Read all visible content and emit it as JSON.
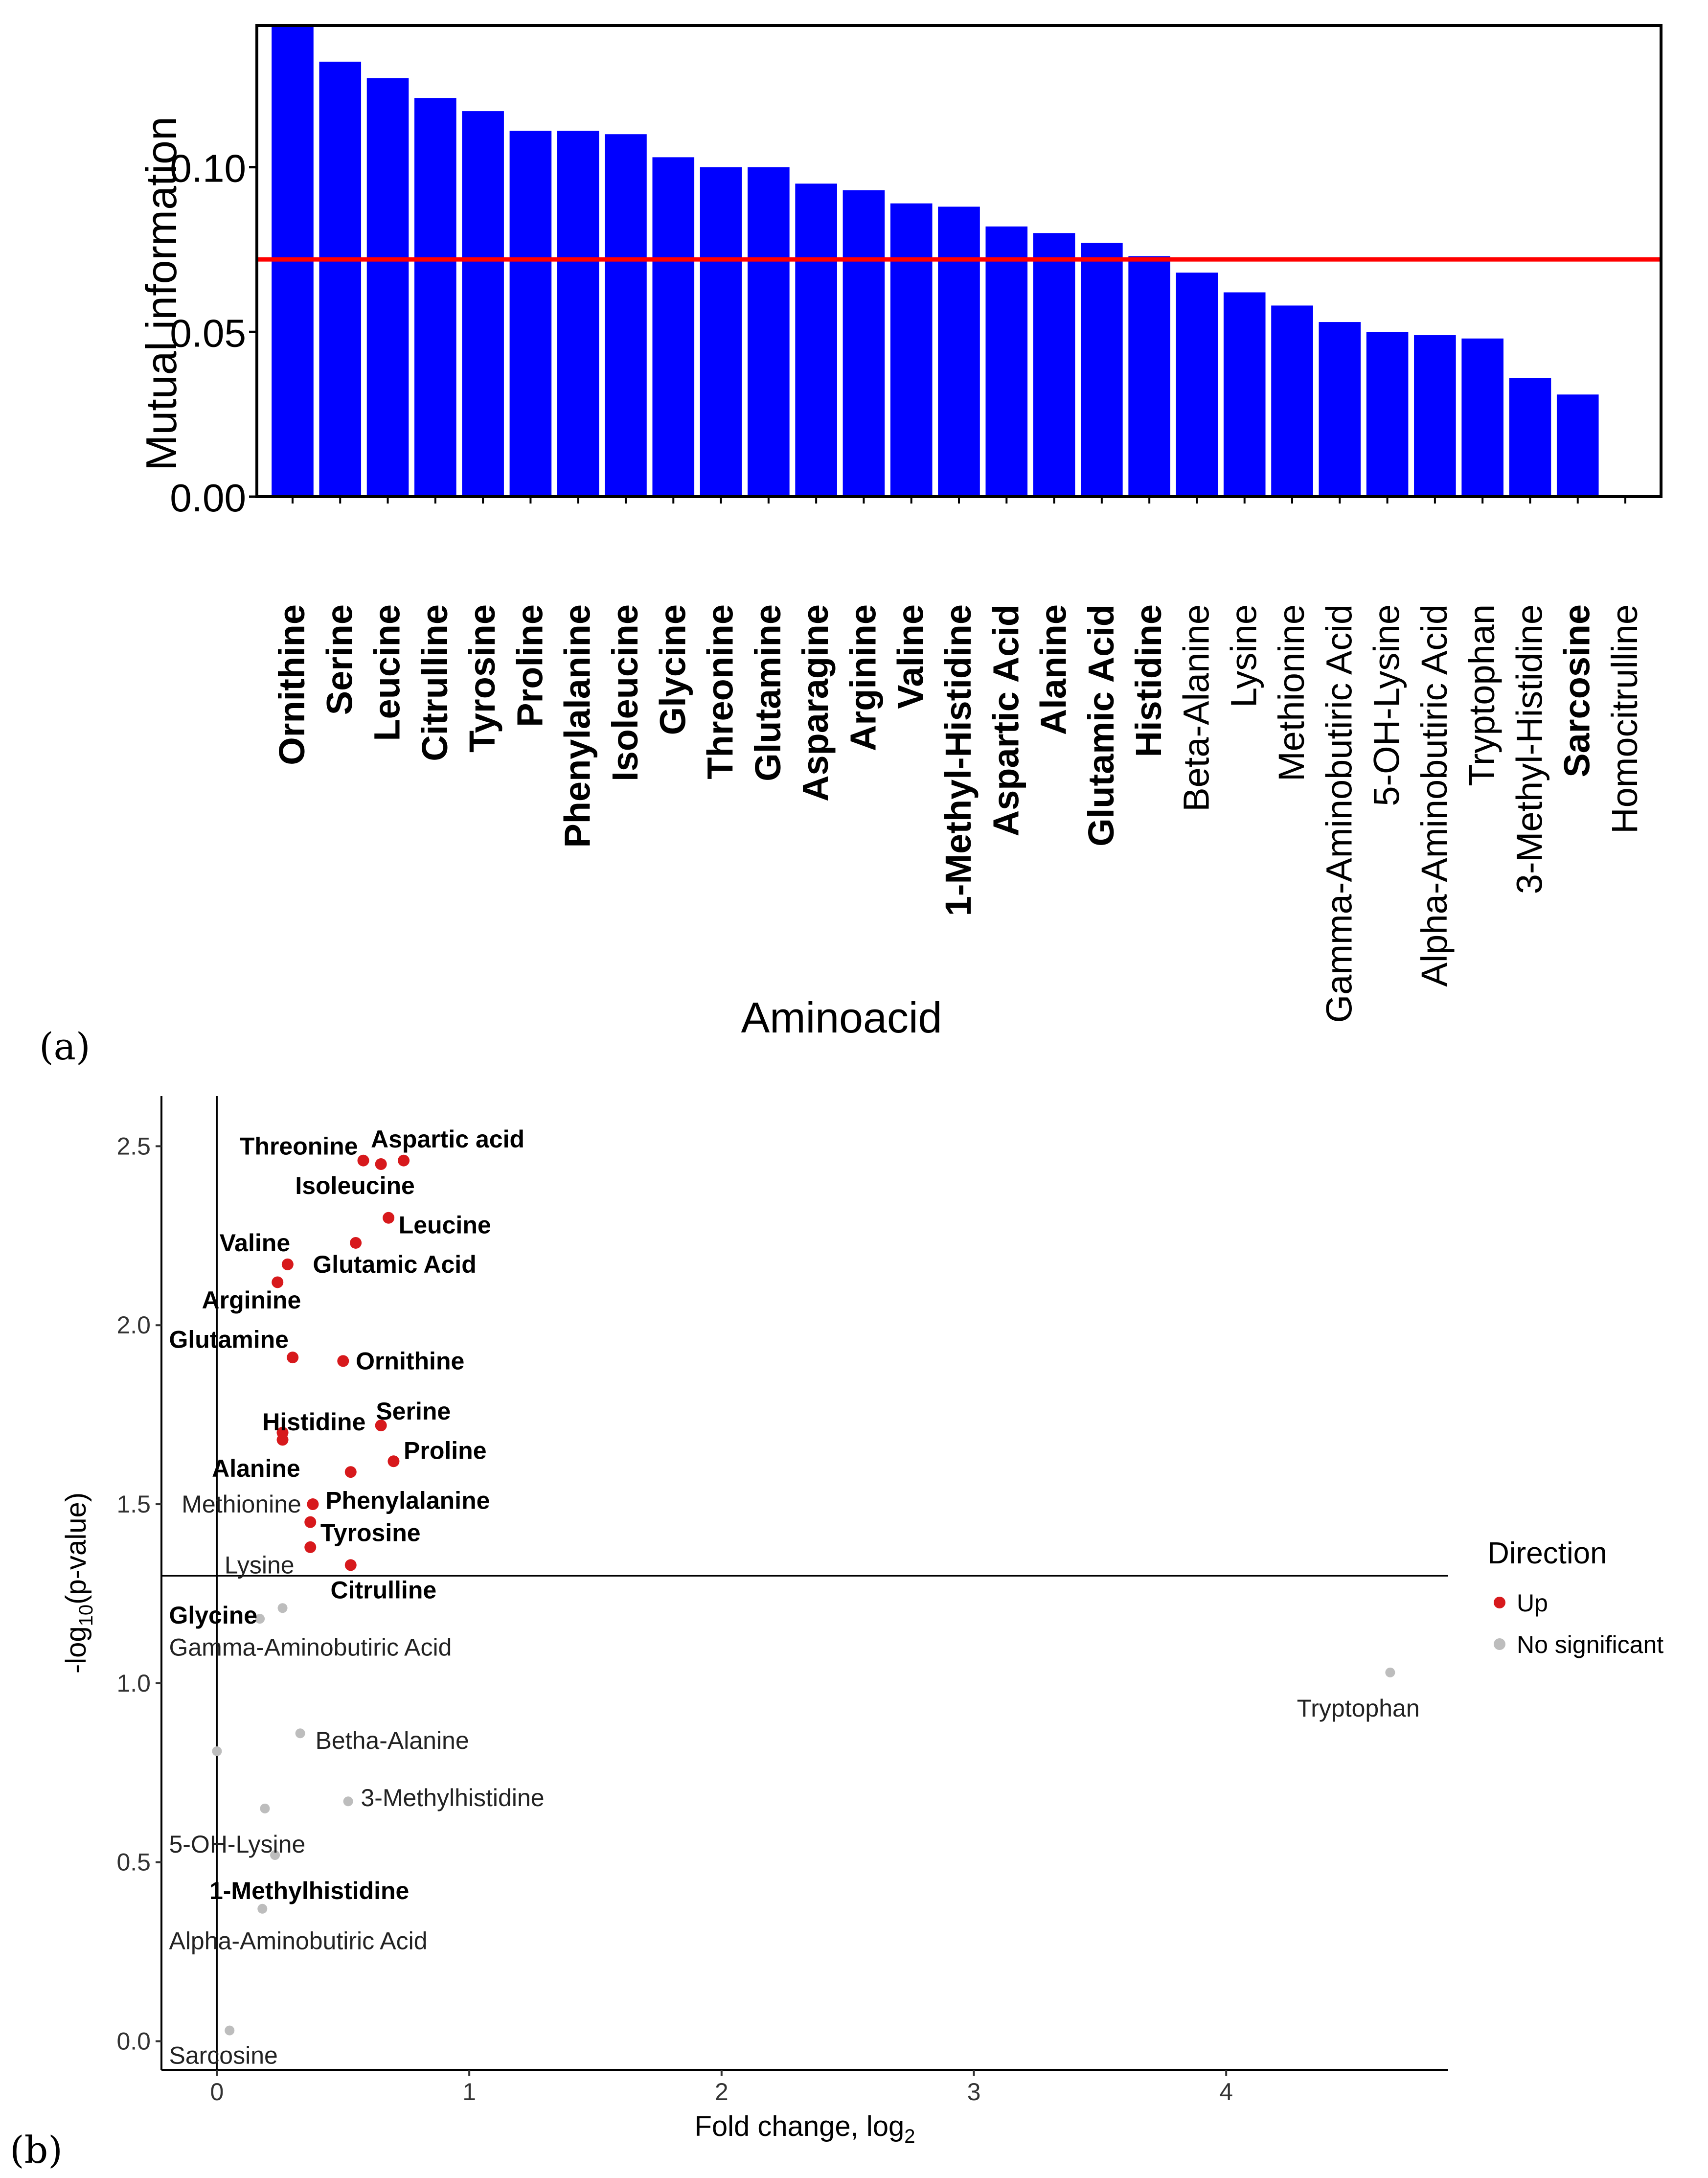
{
  "chart_data": [
    {
      "panel_label": "(a)",
      "type": "bar",
      "xlabel": "Aminoacid",
      "ylabel": "Mutual information",
      "ylim": [
        0,
        0.143
      ],
      "yticks": [
        0.0,
        0.05,
        0.1
      ],
      "ytick_labels": [
        "0.00",
        "0.05",
        "0.10"
      ],
      "bar_color": "#0000ff",
      "threshold": 0.072,
      "threshold_color": "#ff0000",
      "categories": [
        "Ornithine",
        "Serine",
        "Leucine",
        "Citrulline",
        "Tyrosine",
        "Proline",
        "Phenylalanine",
        "Isoleucine",
        "Glycine",
        "Threonine",
        "Glutamine",
        "Asparagine",
        "Arginine",
        "Valine",
        "1-Methyl-Histidine",
        "Aspartic Acid",
        "Alanine",
        "Glutamic Acid",
        "Histidine",
        "Beta-Alanine",
        "Lysine",
        "Methionine",
        "Gamma-Aminobutiric Acid",
        "5-OH-Lysine",
        "Alpha-Aminobutiric Acid",
        "Tryptophan",
        "3-Methyl-Histidine",
        "Sarcosine",
        "Homocitrulline"
      ],
      "values": [
        0.144,
        0.132,
        0.127,
        0.121,
        0.117,
        0.111,
        0.111,
        0.11,
        0.103,
        0.1,
        0.1,
        0.095,
        0.093,
        0.089,
        0.088,
        0.082,
        0.08,
        0.077,
        0.073,
        0.068,
        0.062,
        0.058,
        0.053,
        0.05,
        0.049,
        0.048,
        0.036,
        0.031,
        0.0
      ],
      "label_bold": [
        true,
        true,
        true,
        true,
        true,
        true,
        true,
        true,
        true,
        true,
        true,
        true,
        true,
        true,
        true,
        true,
        true,
        true,
        true,
        false,
        false,
        false,
        false,
        false,
        false,
        false,
        false,
        true,
        false
      ]
    },
    {
      "panel_label": "(b)",
      "type": "scatter",
      "xlabel": "Fold change, log",
      "xlabel_sub": "2",
      "ylabel_pre": "-log",
      "ylabel_sub": "10",
      "ylabel_post": "(p-value)",
      "xlim": [
        -0.22,
        4.88
      ],
      "ylim": [
        -0.08,
        2.64
      ],
      "xticks": [
        0,
        1,
        2,
        3,
        4
      ],
      "xtick_labels": [
        "0",
        "1",
        "2",
        "3",
        "4"
      ],
      "yticks": [
        0.0,
        0.5,
        1.0,
        1.5,
        2.0,
        2.5
      ],
      "ytick_labels": [
        "0.0",
        "0.5",
        "1.0",
        "1.5",
        "2.0",
        "2.5"
      ],
      "vline_x": 0,
      "hline_y": 1.3,
      "legend": {
        "title": "Direction",
        "placement": "right",
        "entries": [
          {
            "label": "Up",
            "color": "#d7191c"
          },
          {
            "label": "No significant",
            "color": "#bdbdbd"
          }
        ]
      },
      "points": [
        {
          "x": 0.58,
          "y": 2.46,
          "dir": "up"
        },
        {
          "x": 0.65,
          "y": 2.45,
          "dir": "up"
        },
        {
          "x": 0.74,
          "y": 2.46,
          "dir": "up"
        },
        {
          "x": 0.68,
          "y": 2.3,
          "dir": "up"
        },
        {
          "x": 0.55,
          "y": 2.23,
          "dir": "up"
        },
        {
          "x": 0.28,
          "y": 2.17,
          "dir": "up"
        },
        {
          "x": 0.24,
          "y": 2.12,
          "dir": "up"
        },
        {
          "x": 0.3,
          "y": 1.91,
          "dir": "up"
        },
        {
          "x": 0.5,
          "y": 1.9,
          "dir": "up"
        },
        {
          "x": 0.65,
          "y": 1.72,
          "dir": "up"
        },
        {
          "x": 0.26,
          "y": 1.7,
          "dir": "up"
        },
        {
          "x": 0.26,
          "y": 1.68,
          "dir": "up"
        },
        {
          "x": 0.7,
          "y": 1.62,
          "dir": "up"
        },
        {
          "x": 0.53,
          "y": 1.59,
          "dir": "up"
        },
        {
          "x": 0.38,
          "y": 1.5,
          "dir": "up"
        },
        {
          "x": 0.37,
          "y": 1.45,
          "dir": "up"
        },
        {
          "x": 0.37,
          "y": 1.38,
          "dir": "up"
        },
        {
          "x": 0.53,
          "y": 1.33,
          "dir": "up"
        },
        {
          "x": 0.26,
          "y": 1.21,
          "dir": "ns"
        },
        {
          "x": 0.17,
          "y": 1.18,
          "dir": "ns"
        },
        {
          "x": 4.65,
          "y": 1.03,
          "dir": "ns"
        },
        {
          "x": 0.33,
          "y": 0.86,
          "dir": "ns"
        },
        {
          "x": 0.0,
          "y": 0.81,
          "dir": "ns"
        },
        {
          "x": 0.52,
          "y": 0.67,
          "dir": "ns"
        },
        {
          "x": 0.19,
          "y": 0.65,
          "dir": "ns"
        },
        {
          "x": 0.23,
          "y": 0.52,
          "dir": "ns"
        },
        {
          "x": 0.18,
          "y": 0.37,
          "dir": "ns"
        },
        {
          "x": 0.05,
          "y": 0.03,
          "dir": "ns"
        }
      ],
      "labels": [
        {
          "text": "Aspartic acid",
          "x": 0.61,
          "y": 2.52,
          "bold": true
        },
        {
          "text": "Threonine",
          "x": 0.09,
          "y": 2.5,
          "bold": true
        },
        {
          "text": "Isoleucine",
          "x": 0.31,
          "y": 2.39,
          "bold": true
        },
        {
          "text": "Leucine",
          "x": 0.72,
          "y": 2.28,
          "bold": true
        },
        {
          "text": "Valine",
          "x": 0.01,
          "y": 2.23,
          "bold": true
        },
        {
          "text": "Glutamic Acid",
          "x": 0.38,
          "y": 2.17,
          "bold": true
        },
        {
          "text": "Arginine",
          "x": -0.06,
          "y": 2.07,
          "bold": true
        },
        {
          "text": "Glutamine",
          "x": -0.19,
          "y": 1.96,
          "bold": true
        },
        {
          "text": "Ornithine",
          "x": 0.55,
          "y": 1.9,
          "bold": true
        },
        {
          "text": "Serine",
          "x": 0.63,
          "y": 1.76,
          "bold": true
        },
        {
          "text": "Histidine",
          "x": 0.18,
          "y": 1.73,
          "bold": true
        },
        {
          "text": "Proline",
          "x": 0.74,
          "y": 1.65,
          "bold": true
        },
        {
          "text": "Alanine",
          "x": -0.02,
          "y": 1.6,
          "bold": true
        },
        {
          "text": "Methionine",
          "x": -0.14,
          "y": 1.5,
          "bold": false
        },
        {
          "text": "Phenylalanine",
          "x": 0.43,
          "y": 1.51,
          "bold": true
        },
        {
          "text": "Tyrosine",
          "x": 0.41,
          "y": 1.42,
          "bold": true
        },
        {
          "text": "Lysine",
          "x": 0.03,
          "y": 1.33,
          "bold": false
        },
        {
          "text": "Citrulline",
          "x": 0.45,
          "y": 1.26,
          "bold": true
        },
        {
          "text": "Glycine",
          "x": -0.19,
          "y": 1.19,
          "bold": true
        },
        {
          "text": "Gamma-Aminobutiric Acid",
          "x": -0.19,
          "y": 1.1,
          "bold": false
        },
        {
          "text": "Tryptophan",
          "x": 4.28,
          "y": 0.93,
          "bold": false
        },
        {
          "text": "Betha-Alanine",
          "x": 0.39,
          "y": 0.84,
          "bold": false
        },
        {
          "text": "3-Methylhistidine",
          "x": 0.57,
          "y": 0.68,
          "bold": false
        },
        {
          "text": "5-OH-Lysine",
          "x": -0.19,
          "y": 0.55,
          "bold": false
        },
        {
          "text": "1-Methylhistidine",
          "x": -0.03,
          "y": 0.42,
          "bold": true
        },
        {
          "text": "Alpha-Aminobutiric Acid",
          "x": -0.19,
          "y": 0.28,
          "bold": false
        },
        {
          "text": "Sarcosine",
          "x": -0.19,
          "y": -0.04,
          "bold": false
        }
      ]
    }
  ]
}
